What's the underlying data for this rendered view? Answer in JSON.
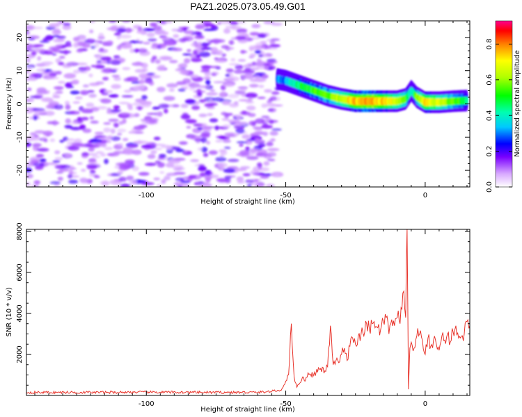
{
  "title": "PAZ1.2025.073.05.49.G01",
  "colors": {
    "line": "#e8332a",
    "frame": "#000000"
  },
  "chart_data": [
    {
      "type": "heatmap",
      "xlabel": "Height of straight line (km)",
      "ylabel": "Frequency (Hz)",
      "xlim": [
        -143,
        16
      ],
      "ylim": [
        -25,
        25
      ],
      "xticks": [
        -100,
        -50,
        0
      ],
      "xtick_labels": [
        "-100",
        "-50",
        "0"
      ],
      "yticks": [
        -20,
        -10,
        0,
        10,
        20
      ],
      "ytick_labels": [
        "-20",
        "-10",
        "0",
        "10",
        "20"
      ],
      "colorbar": {
        "label": "Normalized spectral amplitude",
        "range": [
          0,
          0.93
        ],
        "ticks": [
          0,
          0.2,
          0.4,
          0.6,
          0.8
        ],
        "tick_labels": [
          "0.0",
          "0.2",
          "0.4",
          "0.6",
          "0.8"
        ],
        "colormap": "rainbow"
      },
      "noise_region": {
        "x": [
          -143,
          -53
        ],
        "amplitude_range": [
          0.02,
          0.15
        ]
      },
      "signal_ridge": {
        "x": [
          -53,
          -50,
          -45,
          -40,
          -35,
          -30,
          -25,
          -20,
          -15,
          -10,
          -7,
          -5,
          -3,
          0,
          5,
          10,
          15
        ],
        "y": [
          7.5,
          7,
          5.5,
          4,
          2.5,
          1.5,
          0.8,
          0.8,
          0.8,
          0.8,
          1.5,
          4,
          2,
          0.5,
          0.5,
          0.8,
          1
        ],
        "amplitude": [
          0.3,
          0.35,
          0.5,
          0.55,
          0.6,
          0.7,
          0.8,
          0.85,
          0.8,
          0.7,
          0.6,
          0.4,
          0.6,
          0.8,
          0.7,
          0.6,
          0.5
        ]
      }
    },
    {
      "type": "line",
      "xlabel": "Height of straight line (km)",
      "ylabel": "SNR (10 * v/v)",
      "xlim": [
        -143,
        16
      ],
      "ylim": [
        0,
        8100
      ],
      "xticks": [
        -100,
        -50,
        0
      ],
      "xtick_labels": [
        "-100",
        "-50",
        "0"
      ],
      "yticks": [
        2000,
        4000,
        6000,
        8000
      ],
      "ytick_labels": [
        "2000",
        "4000",
        "6000",
        "8000"
      ],
      "series": [
        {
          "x": [
            -143,
            -120,
            -100,
            -80,
            -60,
            -55,
            -52,
            -51,
            -50,
            -49,
            -48,
            -47,
            -46,
            -45,
            -44,
            -43,
            -42,
            -40,
            -38,
            -36,
            -35,
            -34,
            -33,
            -32,
            -31,
            -30,
            -29,
            -28,
            -27,
            -26,
            -25,
            -24,
            -23,
            -22,
            -21,
            -20,
            -19,
            -18,
            -17,
            -16,
            -15,
            -14,
            -13,
            -12,
            -11,
            -10,
            -9,
            -8,
            -7,
            -6.5,
            -6,
            -5.5,
            -5,
            -4,
            -3,
            -2,
            -1,
            0,
            1,
            2,
            3,
            4,
            5,
            6,
            7,
            8,
            9,
            10,
            11,
            12,
            13,
            14,
            15,
            16
          ],
          "y": [
            150,
            150,
            160,
            150,
            150,
            200,
            250,
            400,
            700,
            1000,
            3500,
            900,
            400,
            600,
            900,
            700,
            1100,
            1000,
            1300,
            1200,
            1400,
            3400,
            1500,
            1700,
            1600,
            2000,
            2300,
            1700,
            2400,
            2800,
            2500,
            2900,
            3000,
            2900,
            3500,
            3200,
            3500,
            3300,
            3300,
            3200,
            3600,
            3800,
            3000,
            3700,
            3400,
            3800,
            3500,
            5000,
            3800,
            8100,
            300,
            2300,
            2600,
            2300,
            2900,
            3000,
            2700,
            2000,
            2800,
            2400,
            2700,
            2500,
            2200,
            2900,
            2700,
            3000,
            2600,
            3100,
            3400,
            2800,
            2900,
            3000,
            3600,
            3400
          ]
        }
      ]
    }
  ]
}
